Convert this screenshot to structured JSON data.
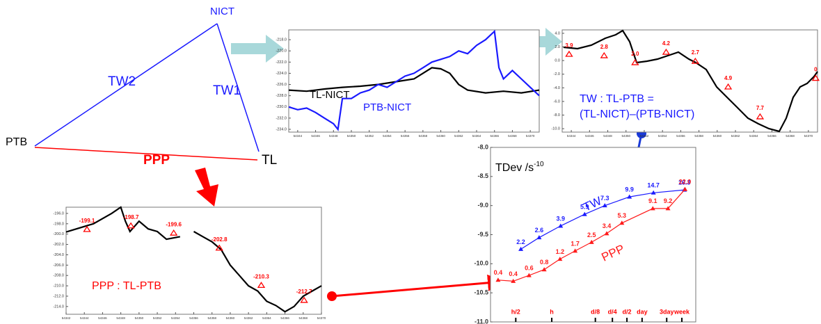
{
  "diagram": {
    "nodes": [
      "NICT",
      "PTB",
      "TL"
    ],
    "links": [
      "TW2",
      "TW1",
      "PPP"
    ]
  },
  "chart_data": [
    {
      "type": "line",
      "series": [
        {
          "name": "TL-NICT",
          "color": "#000000",
          "x": [
            54343,
            54345,
            54347,
            54349,
            54351,
            54353,
            54355,
            54357,
            54358,
            54359,
            54360,
            54361,
            54362,
            54363,
            54365,
            54367,
            54369,
            54371
          ],
          "values": [
            -227,
            -227.2,
            -226.8,
            -226.5,
            -226.3,
            -226,
            -225.5,
            -225,
            -224,
            -223,
            -223.2,
            -224,
            -226,
            -227,
            -227.5,
            -227.2,
            -227.5,
            -227
          ]
        },
        {
          "name": "PTB-NICT",
          "color": "#1a1aff",
          "x": [
            54343,
            54344,
            54345,
            54346,
            54347,
            54348,
            54348.5,
            54349,
            54350,
            54351,
            54352,
            54353,
            54354,
            54355,
            54356,
            54357,
            54358,
            54359,
            54360,
            54361,
            54362,
            54363,
            54364,
            54365,
            54366,
            54366.5,
            54367,
            54368,
            54369,
            54370,
            54371
          ],
          "values": [
            -230,
            -230.5,
            -230.2,
            -231,
            -232,
            -233,
            -234,
            -228.5,
            -228.5,
            -227.5,
            -227,
            -226,
            -226.5,
            -225.5,
            -224.5,
            -224,
            -223,
            -222,
            -221.5,
            -221,
            -220,
            -220.5,
            -219,
            -218,
            -216.5,
            -223,
            -225,
            -223.5,
            -225,
            -226.5,
            -228
          ]
        }
      ],
      "xlim": [
        54343,
        54371
      ],
      "xticks": [
        54344,
        54346,
        54348,
        54350,
        54352,
        54354,
        54356,
        54358,
        54360,
        54362,
        54364,
        54366,
        54368,
        54370
      ],
      "ylim": [
        -234.5,
        -216.25
      ],
      "yticks": [
        {
          "value": -218,
          "label": "-218.0"
        },
        {
          "value": -220,
          "label": "-220.0"
        },
        {
          "value": -222,
          "label": "-222.0"
        },
        {
          "value": -224,
          "label": "-224.0"
        },
        {
          "value": -226,
          "label": "-226.0"
        },
        {
          "value": -228,
          "label": "-228.0"
        },
        {
          "value": -230,
          "label": "-230.0"
        },
        {
          "value": -232,
          "label": "-232.0"
        },
        {
          "value": -234,
          "label": "-234.0"
        }
      ]
    },
    {
      "type": "line",
      "title": "TW : TL-PTB =",
      "subtitle": "(TL-NICT)–(PTB-NICT)",
      "series": [
        {
          "color": "#000000",
          "x": [
            54343.15,
            54344.68,
            54346.2,
            54347.73,
            54348.87,
            54349.64,
            54350.4,
            54351.16,
            54352.31,
            54353.45,
            54354.6,
            54355.74,
            54356.89,
            54357.65,
            54358.79,
            54359.94,
            54361.08,
            54362.23,
            54363.37,
            54364.51,
            54365.66,
            54366.8,
            54367.57,
            54368.33,
            54369.09,
            54369.86,
            54370.62,
            54371
          ],
          "values": [
            1.95,
            1.74,
            2.26,
            3.28,
            3.79,
            4.4,
            2.77,
            -0.3,
            -0.09,
            0.21,
            0.72,
            1.23,
            0.21,
            -0.3,
            -1.32,
            -3.87,
            -5.4,
            -6.93,
            -8.46,
            -9.28,
            -9.99,
            -10.4,
            -8.46,
            -5.4,
            -3.87,
            -3.36,
            -2.34,
            -1.62
          ]
        }
      ],
      "annotations": [
        {
          "x": 54343.76,
          "y": 0.93,
          "label": "3.9"
        },
        {
          "x": 54347.6,
          "y": 0.72,
          "label": "2.8"
        },
        {
          "x": 54351,
          "y": -0.3,
          "label": "2.0"
        },
        {
          "x": 54354.4,
          "y": 1.23,
          "label": "4.2"
        },
        {
          "x": 54357.6,
          "y": -0.1,
          "label": "2.7"
        },
        {
          "x": 54361.2,
          "y": -3.87,
          "label": "4.9"
        },
        {
          "x": 54364.7,
          "y": -8.25,
          "label": "7.7"
        },
        {
          "x": 54370.8,
          "y": -2.6,
          "label": "0"
        }
      ],
      "xlim": [
        54343,
        54371
      ],
      "xticks": [
        54344,
        54346,
        54348,
        54350,
        54352,
        54354,
        54356,
        54358,
        54360,
        54362,
        54364,
        54366,
        54368,
        54370
      ],
      "ylim": [
        -10.5,
        4.5
      ],
      "yticks": [
        {
          "value": -10,
          "label": "-10.0"
        },
        {
          "value": -8,
          "label": "-8.0"
        },
        {
          "value": -6,
          "label": "-6.0"
        },
        {
          "value": -4,
          "label": "-4.0"
        },
        {
          "value": -2,
          "label": "-2.0"
        },
        {
          "value": 0,
          "label": "0.0"
        },
        {
          "value": 2,
          "label": "2.0"
        },
        {
          "value": 4,
          "label": "4.0"
        }
      ]
    },
    {
      "type": "line",
      "title": "PPP : TL-PTB",
      "series": [
        {
          "color": "#000000",
          "x": [
            54342,
            54345,
            54347,
            54348,
            54348.5,
            54349,
            54350,
            54351,
            54352,
            54353,
            54354.5,
            54355.2,
            54356,
            54357,
            54358,
            54359,
            54360,
            54361,
            54362,
            54363,
            54364,
            54365,
            54366,
            54367,
            54368,
            54369,
            54370
          ],
          "values": [
            -199.6,
            -198,
            -196,
            -194.8,
            -197.5,
            -199.5,
            -197.5,
            -199,
            -199.5,
            -201,
            -200.5,
            null,
            -199.5,
            -200.5,
            -201.5,
            -203,
            -206,
            -208,
            -210,
            -211,
            -213,
            -213.8,
            -215,
            -214,
            -212,
            -211,
            -210
          ]
        }
      ],
      "annotations": [
        {
          "x": 54344.29,
          "y": -199.1,
          "label": "-199.1"
        },
        {
          "x": 54349.1,
          "y": -198.4,
          "label": "-198.7"
        },
        {
          "x": 54353.8,
          "y": -199.8,
          "label": "-199.6"
        },
        {
          "x": 54358.8,
          "y": -202.7,
          "label": "-202.8"
        },
        {
          "x": 54363.4,
          "y": -209.9,
          "label": "-210.3"
        },
        {
          "x": 54368.1,
          "y": -212.8,
          "label": "-212.7"
        }
      ],
      "xlim": [
        54342,
        54370
      ],
      "xticks": [
        54342,
        54344,
        54346,
        54348,
        54350,
        54352,
        54354,
        54356,
        54358,
        54360,
        54362,
        54364,
        54366,
        54368,
        54370
      ],
      "ylim": [
        -215.5,
        -194.8
      ],
      "yticks": [
        {
          "value": -196,
          "label": "-196.0"
        },
        {
          "value": -198,
          "label": "-198.0"
        },
        {
          "value": -200,
          "label": "-200.0"
        },
        {
          "value": -202,
          "label": "-202.0"
        },
        {
          "value": -204,
          "label": "-204.0"
        },
        {
          "value": -206,
          "label": "-206.0"
        },
        {
          "value": -208,
          "label": "-208.0"
        },
        {
          "value": -210,
          "label": "-210.0"
        },
        {
          "value": -212,
          "label": "-212.0"
        },
        {
          "value": -214,
          "label": "-214.0"
        }
      ]
    },
    {
      "type": "tdev",
      "title": "TDev /s",
      "title_superscript": "-10",
      "series": [
        {
          "name": "TW",
          "color": "#1a1aff",
          "x": [
            3.18,
            3.47,
            3.81,
            4.19,
            4.51,
            4.9,
            5.28,
            5.77
          ],
          "values": [
            -9.75,
            -9.55,
            -9.35,
            -9.15,
            -9.0,
            -8.85,
            -8.78,
            -8.73
          ],
          "labels": [
            "2.2",
            "2.6",
            "3.9",
            "5.9",
            "7.3",
            "9.9",
            "14.7",
            "16.3"
          ]
        },
        {
          "name": "PPP",
          "color": "#ff1a1a",
          "x": [
            2.82,
            3.06,
            3.31,
            3.55,
            3.8,
            4.04,
            4.3,
            4.54,
            4.78,
            5.27,
            5.51,
            5.78
          ],
          "values": [
            -10.28,
            -10.3,
            -10.2,
            -10.1,
            -9.92,
            -9.78,
            -9.63,
            -9.48,
            -9.3,
            -9.05,
            -9.05,
            -8.72
          ],
          "labels": [
            "0.4",
            "0.4",
            "0.6",
            "0.8",
            "1.2",
            "1.7",
            "2.5",
            "3.4",
            "5.3",
            "9.1",
            "9.2",
            "22.0"
          ]
        }
      ],
      "xlim": [
        2.7,
        5.95
      ],
      "xticks": [
        {
          "value": 3.1,
          "label": "h/2"
        },
        {
          "value": 3.67,
          "label": "h"
        },
        {
          "value": 4.36,
          "label": "d/8"
        },
        {
          "value": 4.63,
          "label": "d/4"
        },
        {
          "value": 4.86,
          "label": "d/2"
        },
        {
          "value": 5.1,
          "label": "day"
        },
        {
          "value": 5.49,
          "label": "3day"
        },
        {
          "value": 5.73,
          "label": "week"
        }
      ],
      "ylim": [
        -11,
        -8
      ],
      "yticks": [
        {
          "value": -8,
          "label": "-8.0"
        },
        -8.5,
        {
          "value": -9,
          "label": "-9.0"
        },
        -9.5,
        {
          "value": -10,
          "label": "-10.0"
        },
        -10.5,
        {
          "value": -11,
          "label": "-11.0"
        }
      ]
    }
  ]
}
